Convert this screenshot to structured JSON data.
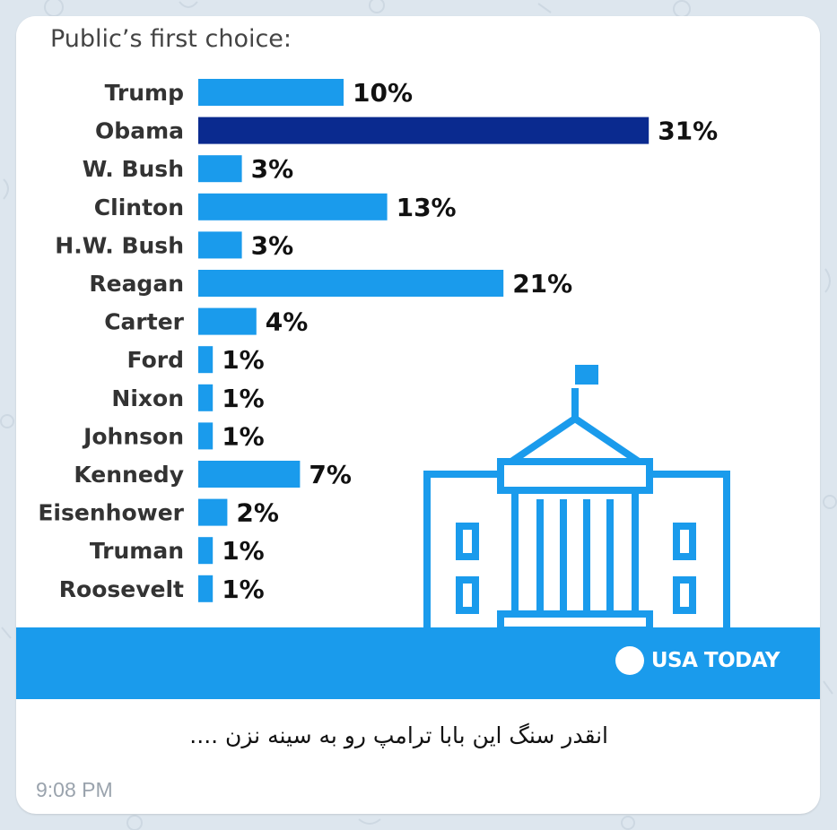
{
  "message": {
    "caption": "انقدر سنگ این بابا ترامپ رو به سینه نزن ....",
    "time": "9:08 PM"
  },
  "brand": {
    "name": "USA TODAY",
    "logo_icon": "usa-today-dot-icon",
    "color": "#1a9bec"
  },
  "illustration": {
    "icon": "capitol-building-icon",
    "color": "#1a9bec"
  },
  "chart_data": {
    "type": "bar",
    "orientation": "horizontal",
    "title": "Public’s first choice:",
    "categories": [
      "Trump",
      "Obama",
      "W. Bush",
      "Clinton",
      "H.W. Bush",
      "Reagan",
      "Carter",
      "Ford",
      "Nixon",
      "Johnson",
      "Kennedy",
      "Eisenhower",
      "Truman",
      "Roosevelt"
    ],
    "values": [
      10,
      31,
      3,
      13,
      3,
      21,
      4,
      1,
      1,
      1,
      7,
      2,
      1,
      1
    ],
    "value_labels": [
      "10%",
      "31%",
      "3%",
      "13%",
      "3%",
      "21%",
      "4%",
      "1%",
      "1%",
      "1%",
      "7%",
      "2%",
      "1%",
      "1%"
    ],
    "unit": "%",
    "highlight": "Obama",
    "colors": {
      "default": "#1a9bec",
      "highlight": "#0a2a8f"
    },
    "grid": false,
    "legend": "none"
  }
}
